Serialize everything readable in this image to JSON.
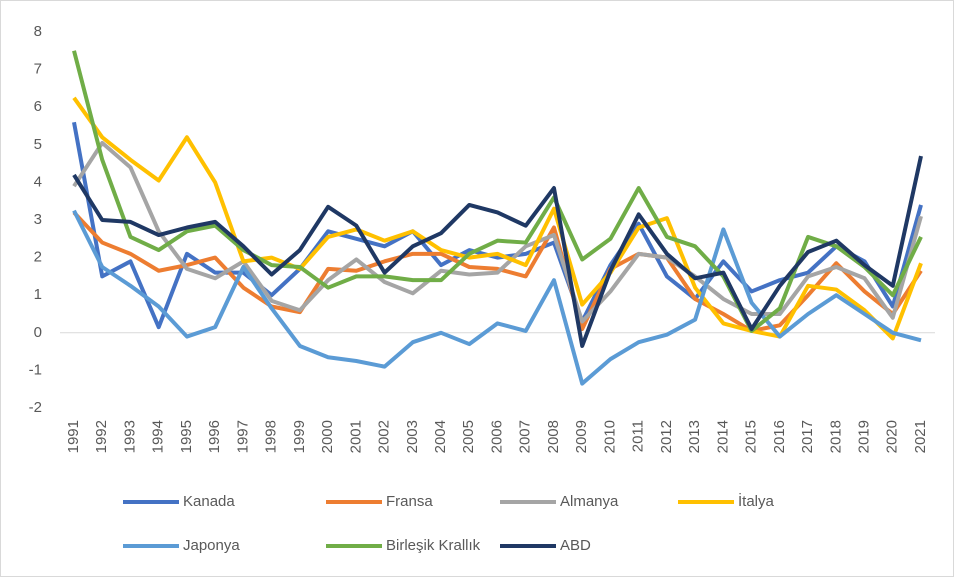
{
  "chart_data": {
    "type": "line",
    "categories": [
      "1991",
      "1992",
      "1993",
      "1994",
      "1995",
      "1996",
      "1997",
      "1998",
      "1999",
      "2000",
      "2001",
      "2002",
      "2003",
      "2004",
      "2005",
      "2006",
      "2007",
      "2008",
      "2009",
      "2010",
      "2011",
      "2012",
      "2013",
      "2014",
      "2015",
      "2016",
      "2017",
      "2018",
      "2019",
      "2020",
      "2021"
    ],
    "ylim": [
      -2,
      8
    ],
    "yticks": [
      -2,
      -1,
      0,
      1,
      2,
      3,
      4,
      5,
      6,
      7,
      8
    ],
    "grid": false,
    "legend": "bottom",
    "series": [
      {
        "name": "Kanada",
        "color": "#4472c4",
        "values": [
          5.6,
          1.5,
          1.9,
          0.15,
          2.1,
          1.6,
          1.6,
          1.0,
          1.7,
          2.7,
          2.5,
          2.3,
          2.7,
          1.8,
          2.2,
          2.0,
          2.1,
          2.4,
          0.3,
          1.8,
          2.9,
          1.5,
          0.9,
          1.9,
          1.1,
          1.4,
          1.6,
          2.3,
          1.9,
          0.7,
          3.4
        ]
      },
      {
        "name": "Fransa",
        "color": "#ed7d31",
        "values": [
          3.2,
          2.4,
          2.1,
          1.65,
          1.8,
          2.0,
          1.2,
          0.7,
          0.55,
          1.7,
          1.65,
          1.9,
          2.1,
          2.1,
          1.75,
          1.7,
          1.5,
          2.8,
          0.1,
          1.7,
          2.1,
          2.0,
          0.9,
          0.5,
          0.05,
          0.2,
          1.0,
          1.85,
          1.1,
          0.5,
          1.65
        ]
      },
      {
        "name": "Almanya",
        "color": "#a5a5a5",
        "values": [
          3.9,
          5.05,
          4.4,
          2.7,
          1.7,
          1.45,
          1.9,
          0.85,
          0.6,
          1.4,
          1.95,
          1.35,
          1.05,
          1.65,
          1.55,
          1.6,
          2.3,
          2.6,
          0.3,
          1.1,
          2.1,
          2.0,
          1.5,
          0.9,
          0.5,
          0.5,
          1.5,
          1.75,
          1.45,
          0.4,
          3.1
        ]
      },
      {
        "name": "İtalya",
        "color": "#ffc000",
        "values": [
          6.25,
          5.2,
          4.6,
          4.05,
          5.2,
          4.0,
          1.9,
          2.0,
          1.7,
          2.55,
          2.75,
          2.45,
          2.7,
          2.2,
          2.0,
          2.1,
          1.8,
          3.3,
          0.75,
          1.6,
          2.8,
          3.05,
          1.2,
          0.25,
          0.05,
          -0.1,
          1.25,
          1.15,
          0.6,
          -0.15,
          1.85
        ]
      },
      {
        "name": "Japonya",
        "color": "#5b9bd5",
        "values": [
          3.25,
          1.75,
          1.25,
          0.7,
          -0.1,
          0.15,
          1.75,
          0.65,
          -0.35,
          -0.65,
          -0.75,
          -0.9,
          -0.25,
          0.0,
          -0.3,
          0.25,
          0.05,
          1.4,
          -1.35,
          -0.7,
          -0.25,
          -0.05,
          0.35,
          2.75,
          0.8,
          -0.1,
          0.5,
          1.0,
          0.5,
          0.0,
          -0.2
        ]
      },
      {
        "name": "Birleşik Krallık",
        "color": "#70ad47",
        "values": [
          7.5,
          4.6,
          2.55,
          2.2,
          2.7,
          2.85,
          2.2,
          1.8,
          1.75,
          1.2,
          1.5,
          1.5,
          1.4,
          1.4,
          2.1,
          2.45,
          2.4,
          3.6,
          1.95,
          2.5,
          3.85,
          2.55,
          2.3,
          1.5,
          0.05,
          0.65,
          2.55,
          2.3,
          1.75,
          1.0,
          2.55
        ]
      },
      {
        "name": "ABD",
        "color": "#1f3864",
        "values": [
          4.2,
          3.0,
          2.95,
          2.6,
          2.8,
          2.95,
          2.3,
          1.55,
          2.2,
          3.35,
          2.85,
          1.6,
          2.3,
          2.65,
          3.4,
          3.2,
          2.85,
          3.85,
          -0.35,
          1.65,
          3.15,
          2.1,
          1.45,
          1.6,
          0.1,
          1.25,
          2.15,
          2.45,
          1.8,
          1.25,
          4.7
        ]
      }
    ]
  }
}
